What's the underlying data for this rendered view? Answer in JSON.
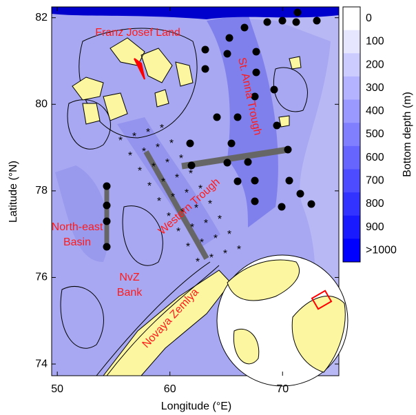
{
  "map": {
    "xlabel": "Longitude (°E)",
    "ylabel": "Latitude (°N)",
    "xlim": [
      49.5,
      75
    ],
    "ylim": [
      73.73,
      82.25
    ],
    "xticks": [
      50,
      60,
      70
    ],
    "yticks": [
      74,
      76,
      78,
      80,
      82
    ],
    "colorbar": {
      "label": "Bottom depth (m)",
      "levels": [
        0,
        100,
        200,
        300,
        400,
        500,
        600,
        700,
        800,
        900,
        {
          "value": 1000,
          "label": ">1000"
        }
      ],
      "colors": [
        "#ffffff",
        "#e6e6ff",
        "#ccccff",
        "#b3b3ff",
        "#9999ff",
        "#8080ff",
        "#6666ff",
        "#4d4dff",
        "#3333ff",
        "#1a1aff",
        "#0000ff"
      ]
    },
    "place_names": [
      [
        "Franz Josef Land"
      ],
      [
        "St. Anna Trough"
      ],
      [
        "Western Trough"
      ],
      [
        "North-east",
        "Basin"
      ],
      [
        "NvZ",
        "Bank"
      ],
      [
        "Novaya Zemlya"
      ]
    ]
  }
}
